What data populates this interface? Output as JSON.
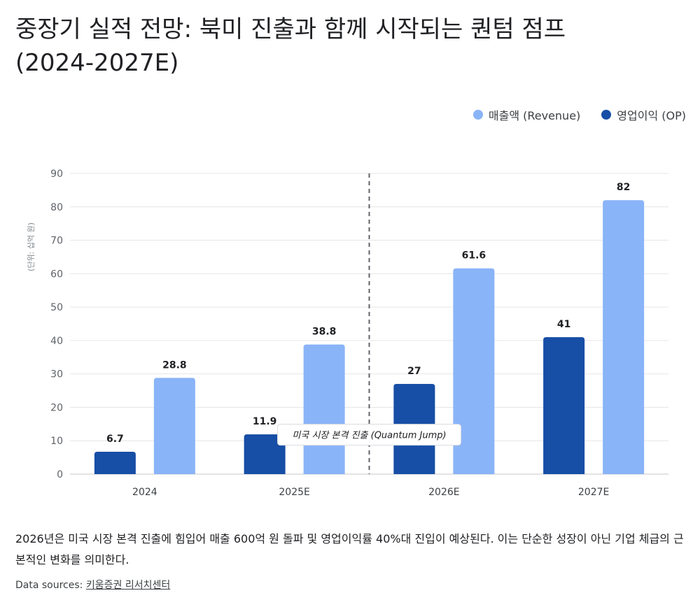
{
  "title_line1": "중장기 실적 전망: 북미 진출과 함께 시작되는 퀀텀 점프",
  "title_line2": "(2024-2027E)",
  "legend": [
    {
      "label": "매출액 (Revenue)",
      "color": "#8ab4f8"
    },
    {
      "label": "영업이익 (OP)",
      "color": "#174ea6"
    }
  ],
  "chart_data": {
    "type": "bar",
    "categories": [
      "2024",
      "2025E",
      "2026E",
      "2027E"
    ],
    "series": [
      {
        "name": "영업이익 (OP)",
        "values": [
          6.7,
          11.9,
          27,
          41
        ],
        "color": "#174ea6"
      },
      {
        "name": "매출액 (Revenue)",
        "values": [
          28.8,
          38.8,
          61.6,
          82
        ],
        "color": "#8ab4f8"
      }
    ],
    "ylabel": "(단위: 십억 원)",
    "ylim": [
      0,
      90
    ],
    "yticks": [
      0,
      10,
      20,
      30,
      40,
      50,
      60,
      70,
      80,
      90
    ],
    "grid": true,
    "legend_position": "top-right",
    "annotation": {
      "text": "미국 시장 본격 진출 (Quantum Jump)",
      "between": [
        "2025E",
        "2026E"
      ]
    }
  },
  "description": "2026년은 미국 시장 본격 진출에 힘입어 매출 600억 원 돌파 및 영업이익률 40%대 진입이 예상된다. 이는 단순한 성장이 아닌 기업 체급의 근본적인 변화를 의미한다.",
  "source_label": "Data sources: ",
  "source_link": "키움증권 리서치센터"
}
